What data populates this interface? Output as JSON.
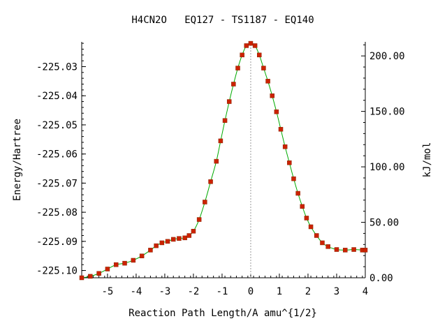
{
  "chart_data": {
    "type": "line",
    "title": "H4CN2O   EQ127 - TS1187 - EQ140",
    "xlabel": "Reaction Path Length/A amu^{1/2}",
    "ylabel": "Energy/Hartree",
    "y2label": "kJ/mol",
    "xlim": [
      -5.9,
      4.0
    ],
    "ylim": [
      -225.1025,
      -225.0215
    ],
    "x_ticks": [
      -5,
      -4,
      -3,
      -2,
      -1,
      0,
      1,
      2,
      3,
      4
    ],
    "x_tick_labels": [
      "-5",
      "-4",
      "-3",
      "-2",
      "-1",
      "0",
      "1",
      "2",
      "3",
      "4"
    ],
    "y_ticks": [
      -225.03,
      -225.04,
      -225.05,
      -225.06,
      -225.07,
      -225.08,
      -225.09,
      -225.1
    ],
    "y_tick_labels": [
      "-225.03",
      "-225.04",
      "-225.05",
      "-225.06",
      "-225.07",
      "-225.08",
      "-225.09",
      "-225.10"
    ],
    "y2_ticks": [
      0,
      50,
      100,
      150,
      200
    ],
    "y2_tick_labels": [
      "0.00",
      "50.00",
      "100.00",
      "150.00",
      "200.00"
    ],
    "y2_zero_energy": -225.1025,
    "hartree_to_kjmol": 2625.5,
    "ts_marker_x": 0,
    "grid": false,
    "colors": {
      "line": "#00aa00",
      "marker": "#cc2200",
      "ts_line": "#999999",
      "axis": "#000000"
    },
    "series": [
      {
        "x": [
          -5.9,
          -5.6,
          -5.3,
          -5.0,
          -4.7,
          -4.4,
          -4.1,
          -3.8,
          -3.5,
          -3.3,
          -3.1,
          -2.9,
          -2.7,
          -2.5,
          -2.3,
          -2.15,
          -2.0,
          -1.8,
          -1.6,
          -1.4,
          -1.2,
          -1.05,
          -0.9,
          -0.75,
          -0.6,
          -0.45,
          -0.3,
          -0.15,
          0.0,
          0.15,
          0.3,
          0.45,
          0.6,
          0.75,
          0.9,
          1.05,
          1.2,
          1.35,
          1.5,
          1.65,
          1.8,
          1.95,
          2.1,
          2.3,
          2.5,
          2.7,
          3.0,
          3.3,
          3.6,
          3.9,
          4.0
        ],
        "y": [
          -225.1025,
          -225.102,
          -225.101,
          -225.0995,
          -225.098,
          -225.0975,
          -225.0965,
          -225.095,
          -225.093,
          -225.0915,
          -225.0905,
          -225.09,
          -225.0893,
          -225.089,
          -225.0888,
          -225.088,
          -225.0865,
          -225.0825,
          -225.0765,
          -225.0695,
          -225.0625,
          -225.0555,
          -225.0485,
          -225.042,
          -225.036,
          -225.0305,
          -225.026,
          -225.0228,
          -225.022,
          -225.0228,
          -225.026,
          -225.0305,
          -225.035,
          -225.04,
          -225.0455,
          -225.0515,
          -225.0575,
          -225.063,
          -225.0685,
          -225.0735,
          -225.078,
          -225.082,
          -225.085,
          -225.088,
          -225.0905,
          -225.0918,
          -225.0928,
          -225.093,
          -225.0928,
          -225.093,
          -225.093
        ]
      }
    ]
  }
}
